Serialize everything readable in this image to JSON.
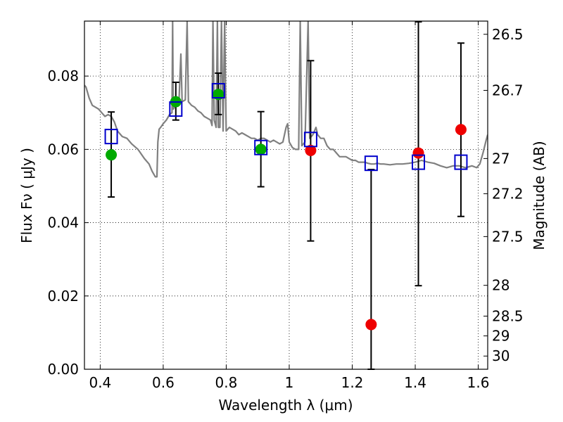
{
  "chart_data": {
    "type": "scatter",
    "xlabel": "Wavelength  λ (μm)",
    "ylabel": "Flux  Fν  ( μJy )",
    "ylabel_right": "Magnitude (AB)",
    "xlim": [
      0.35,
      1.63
    ],
    "ylim": [
      0.0,
      0.095
    ],
    "grid": true,
    "x_ticks": [
      0.4,
      0.6,
      0.8,
      1.0,
      1.2,
      1.4,
      1.6
    ],
    "x_tick_labels": [
      "0.4",
      "0.6",
      "0.8",
      "1",
      "1.2",
      "1.4",
      "1.6"
    ],
    "y_ticks": [
      0.0,
      0.02,
      0.04,
      0.06,
      0.08
    ],
    "y_tick_labels": [
      "0.00",
      "0.02",
      "0.04",
      "0.06",
      "0.08"
    ],
    "right_ticks": [
      {
        "flux": 0.0914,
        "label": "26.5"
      },
      {
        "flux": 0.0761,
        "label": "26.7"
      },
      {
        "flux": 0.0575,
        "label": "27"
      },
      {
        "flux": 0.0479,
        "label": "27.2"
      },
      {
        "flux": 0.0362,
        "label": "27.5"
      },
      {
        "flux": 0.0229,
        "label": "28"
      },
      {
        "flux": 0.0145,
        "label": "28.5"
      },
      {
        "flux": 0.0091,
        "label": "29"
      },
      {
        "flux": 0.0036,
        "label": "30"
      }
    ],
    "series": [
      {
        "type": "errorbar",
        "color": "#0000cc",
        "marker": "open-square",
        "points": [
          {
            "x": 0.435,
            "y": 0.0635,
            "yerr_low": 0.047,
            "yerr_high": 0.0702
          },
          {
            "x": 0.64,
            "y": 0.071,
            "yerr_low": 0.068,
            "yerr_high": 0.0783
          },
          {
            "x": 0.775,
            "y": 0.076,
            "yerr_low": 0.0695,
            "yerr_high": 0.0808
          },
          {
            "x": 0.91,
            "y": 0.0605,
            "yerr_low": 0.0498,
            "yerr_high": 0.0703
          },
          {
            "x": 1.068,
            "y": 0.0627,
            "yerr_low": 0.035,
            "yerr_high": 0.0842
          },
          {
            "x": 1.26,
            "y": 0.0562,
            "yerr_low": 0.0,
            "yerr_high": 0.0545
          },
          {
            "x": 1.41,
            "y": 0.0565,
            "yerr_low": 0.0228,
            "yerr_high": 0.0948
          },
          {
            "x": 1.545,
            "y": 0.0565,
            "yerr_low": 0.0417,
            "yerr_high": 0.089
          }
        ]
      },
      {
        "type": "scatter",
        "color": "#00aa00",
        "marker": "filled-circle",
        "points": [
          {
            "x": 0.435,
            "y": 0.0585
          },
          {
            "x": 0.64,
            "y": 0.073
          },
          {
            "x": 0.775,
            "y": 0.075
          },
          {
            "x": 0.91,
            "y": 0.06
          }
        ]
      },
      {
        "type": "scatter",
        "color": "#ee0000",
        "marker": "filled-circle",
        "points": [
          {
            "x": 1.068,
            "y": 0.0597
          },
          {
            "x": 1.26,
            "y": 0.0122
          },
          {
            "x": 1.41,
            "y": 0.059
          },
          {
            "x": 1.545,
            "y": 0.0654
          }
        ]
      },
      {
        "type": "line",
        "color": "#808080",
        "points": [
          [
            0.35,
            0.0775
          ],
          [
            0.355,
            0.077
          ],
          [
            0.365,
            0.074
          ],
          [
            0.375,
            0.072
          ],
          [
            0.385,
            0.0715
          ],
          [
            0.395,
            0.071
          ],
          [
            0.405,
            0.07
          ],
          [
            0.415,
            0.069
          ],
          [
            0.425,
            0.0695
          ],
          [
            0.435,
            0.069
          ],
          [
            0.445,
            0.0675
          ],
          [
            0.455,
            0.065
          ],
          [
            0.47,
            0.0635
          ],
          [
            0.485,
            0.063
          ],
          [
            0.5,
            0.0615
          ],
          [
            0.52,
            0.06
          ],
          [
            0.54,
            0.0575
          ],
          [
            0.555,
            0.056
          ],
          [
            0.565,
            0.054
          ],
          [
            0.575,
            0.0525
          ],
          [
            0.58,
            0.0525
          ],
          [
            0.583,
            0.062
          ],
          [
            0.587,
            0.0655
          ],
          [
            0.592,
            0.066
          ],
          [
            0.6,
            0.067
          ],
          [
            0.61,
            0.068
          ],
          [
            0.62,
            0.0695
          ],
          [
            0.628,
            0.07
          ],
          [
            0.63,
            0.095
          ],
          [
            0.632,
            0.071
          ],
          [
            0.64,
            0.072
          ],
          [
            0.65,
            0.073
          ],
          [
            0.656,
            0.086
          ],
          [
            0.66,
            0.073
          ],
          [
            0.67,
            0.0735
          ],
          [
            0.676,
            0.095
          ],
          [
            0.68,
            0.073
          ],
          [
            0.69,
            0.072
          ],
          [
            0.7,
            0.0715
          ],
          [
            0.71,
            0.0705
          ],
          [
            0.72,
            0.07
          ],
          [
            0.73,
            0.069
          ],
          [
            0.74,
            0.0685
          ],
          [
            0.75,
            0.068
          ],
          [
            0.755,
            0.0665
          ],
          [
            0.758,
            0.095
          ],
          [
            0.762,
            0.068
          ],
          [
            0.768,
            0.066
          ],
          [
            0.772,
            0.095
          ],
          [
            0.775,
            0.066
          ],
          [
            0.78,
            0.066
          ],
          [
            0.785,
            0.095
          ],
          [
            0.79,
            0.065
          ],
          [
            0.795,
            0.095
          ],
          [
            0.8,
            0.065
          ],
          [
            0.81,
            0.066
          ],
          [
            0.82,
            0.0655
          ],
          [
            0.83,
            0.065
          ],
          [
            0.84,
            0.064
          ],
          [
            0.85,
            0.0645
          ],
          [
            0.86,
            0.064
          ],
          [
            0.87,
            0.0635
          ],
          [
            0.88,
            0.063
          ],
          [
            0.89,
            0.063
          ],
          [
            0.9,
            0.0625
          ],
          [
            0.91,
            0.063
          ],
          [
            0.92,
            0.063
          ],
          [
            0.93,
            0.0625
          ],
          [
            0.94,
            0.062
          ],
          [
            0.95,
            0.0625
          ],
          [
            0.96,
            0.062
          ],
          [
            0.97,
            0.0615
          ],
          [
            0.98,
            0.062
          ],
          [
            0.99,
            0.066
          ],
          [
            0.995,
            0.067
          ],
          [
            1.0,
            0.062
          ],
          [
            1.01,
            0.0605
          ],
          [
            1.02,
            0.06
          ],
          [
            1.03,
            0.06
          ],
          [
            1.035,
            0.095
          ],
          [
            1.04,
            0.061
          ],
          [
            1.05,
            0.062
          ],
          [
            1.06,
            0.095
          ],
          [
            1.065,
            0.063
          ],
          [
            1.075,
            0.064
          ],
          [
            1.085,
            0.066
          ],
          [
            1.09,
            0.064
          ],
          [
            1.1,
            0.063
          ],
          [
            1.11,
            0.063
          ],
          [
            1.12,
            0.061
          ],
          [
            1.13,
            0.06
          ],
          [
            1.14,
            0.06
          ],
          [
            1.15,
            0.059
          ],
          [
            1.16,
            0.058
          ],
          [
            1.17,
            0.058
          ],
          [
            1.18,
            0.058
          ],
          [
            1.19,
            0.0575
          ],
          [
            1.2,
            0.057
          ],
          [
            1.21,
            0.057
          ],
          [
            1.22,
            0.0565
          ],
          [
            1.23,
            0.0565
          ],
          [
            1.24,
            0.0565
          ],
          [
            1.25,
            0.0562
          ],
          [
            1.26,
            0.056
          ],
          [
            1.27,
            0.056
          ],
          [
            1.28,
            0.0562
          ],
          [
            1.29,
            0.056
          ],
          [
            1.3,
            0.056
          ],
          [
            1.32,
            0.0558
          ],
          [
            1.34,
            0.056
          ],
          [
            1.36,
            0.056
          ],
          [
            1.38,
            0.0562
          ],
          [
            1.4,
            0.0565
          ],
          [
            1.42,
            0.057
          ],
          [
            1.44,
            0.0565
          ],
          [
            1.46,
            0.0562
          ],
          [
            1.48,
            0.0555
          ],
          [
            1.5,
            0.055
          ],
          [
            1.52,
            0.0555
          ],
          [
            1.54,
            0.0555
          ],
          [
            1.56,
            0.055
          ],
          [
            1.58,
            0.0555
          ],
          [
            1.595,
            0.055
          ],
          [
            1.605,
            0.056
          ],
          [
            1.615,
            0.059
          ],
          [
            1.625,
            0.0625
          ],
          [
            1.63,
            0.064
          ]
        ]
      }
    ]
  }
}
